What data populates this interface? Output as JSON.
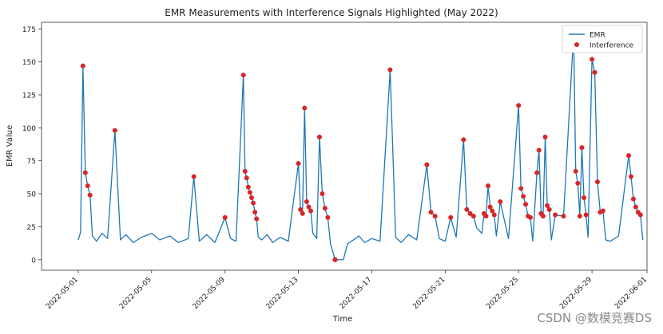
{
  "chart_data": {
    "type": "line",
    "title": "EMR Measurements with Interference Signals Highlighted (May 2022)",
    "xlabel": "Time",
    "ylabel": "EMR Value",
    "xlim": [
      "2022-04-29",
      "2022-06-01"
    ],
    "ylim": [
      -8,
      180
    ],
    "x_ticks": [
      "2022-05-01",
      "2022-05-05",
      "2022-05-09",
      "2022-05-13",
      "2022-05-17",
      "2022-05-21",
      "2022-05-25",
      "2022-05-29",
      "2022-06-01"
    ],
    "y_ticks": [
      0,
      25,
      50,
      75,
      100,
      125,
      150,
      175
    ],
    "grid": false,
    "legend_position": "top-right",
    "series": [
      {
        "name": "EMR",
        "kind": "line",
        "color": "#1f77b4",
        "points": [
          [
            "2022-05-01",
            15
          ],
          [
            "2022-05-01",
            21
          ],
          [
            "2022-05-01",
            147
          ],
          [
            "2022-05-01",
            66
          ],
          [
            "2022-05-01",
            56
          ],
          [
            "2022-05-01",
            49
          ],
          [
            "2022-05-01",
            18
          ],
          [
            "2022-05-02",
            14
          ],
          [
            "2022-05-02",
            20
          ],
          [
            "2022-05-02",
            16
          ],
          [
            "2022-05-03",
            98
          ],
          [
            "2022-05-03",
            15
          ],
          [
            "2022-05-03",
            19
          ],
          [
            "2022-05-04",
            13
          ],
          [
            "2022-05-04",
            17
          ],
          [
            "2022-05-05",
            20
          ],
          [
            "2022-05-05",
            15
          ],
          [
            "2022-05-06",
            18
          ],
          [
            "2022-05-06",
            13
          ],
          [
            "2022-05-07",
            16
          ],
          [
            "2022-05-07",
            63
          ],
          [
            "2022-05-07",
            14
          ],
          [
            "2022-05-08",
            19
          ],
          [
            "2022-05-08",
            13
          ],
          [
            "2022-05-09",
            32
          ],
          [
            "2022-05-09",
            16
          ],
          [
            "2022-05-09",
            14
          ],
          [
            "2022-05-10",
            140
          ],
          [
            "2022-05-10",
            67
          ],
          [
            "2022-05-10",
            62
          ],
          [
            "2022-05-10",
            55
          ],
          [
            "2022-05-10",
            51
          ],
          [
            "2022-05-10",
            47
          ],
          [
            "2022-05-10",
            43
          ],
          [
            "2022-05-10",
            36
          ],
          [
            "2022-05-10",
            31
          ],
          [
            "2022-05-10",
            17
          ],
          [
            "2022-05-11",
            15
          ],
          [
            "2022-05-11",
            19
          ],
          [
            "2022-05-11",
            13
          ],
          [
            "2022-05-12",
            17
          ],
          [
            "2022-05-12",
            14
          ],
          [
            "2022-05-13",
            73
          ],
          [
            "2022-05-13",
            38
          ],
          [
            "2022-05-13",
            35
          ],
          [
            "2022-05-13",
            115
          ],
          [
            "2022-05-13",
            44
          ],
          [
            "2022-05-13",
            40
          ],
          [
            "2022-05-13",
            37
          ],
          [
            "2022-05-13",
            20
          ],
          [
            "2022-05-14",
            16
          ],
          [
            "2022-05-14",
            93
          ],
          [
            "2022-05-14",
            50
          ],
          [
            "2022-05-14",
            39
          ],
          [
            "2022-05-14",
            32
          ],
          [
            "2022-05-14",
            12
          ],
          [
            "2022-05-15",
            0
          ],
          [
            "2022-05-15",
            0
          ],
          [
            "2022-05-15",
            0
          ],
          [
            "2022-05-15",
            12
          ],
          [
            "2022-05-16",
            15
          ],
          [
            "2022-05-16",
            18
          ],
          [
            "2022-05-16",
            13
          ],
          [
            "2022-05-17",
            16
          ],
          [
            "2022-05-17",
            14
          ],
          [
            "2022-05-18",
            144
          ],
          [
            "2022-05-18",
            17
          ],
          [
            "2022-05-18",
            13
          ],
          [
            "2022-05-19",
            19
          ],
          [
            "2022-05-19",
            15
          ],
          [
            "2022-05-20",
            72
          ],
          [
            "2022-05-20",
            36
          ],
          [
            "2022-05-20",
            33
          ],
          [
            "2022-05-20",
            16
          ],
          [
            "2022-05-21",
            14
          ],
          [
            "2022-05-21",
            32
          ],
          [
            "2022-05-21",
            17
          ],
          [
            "2022-05-22",
            91
          ],
          [
            "2022-05-22",
            38
          ],
          [
            "2022-05-22",
            35
          ],
          [
            "2022-05-22",
            33
          ],
          [
            "2022-05-22",
            24
          ],
          [
            "2022-05-23",
            20
          ],
          [
            "2022-05-23",
            35
          ],
          [
            "2022-05-23",
            33
          ],
          [
            "2022-05-23",
            56
          ],
          [
            "2022-05-23",
            40
          ],
          [
            "2022-05-23",
            37
          ],
          [
            "2022-05-23",
            34
          ],
          [
            "2022-05-23",
            18
          ],
          [
            "2022-05-24",
            44
          ],
          [
            "2022-05-24",
            16
          ],
          [
            "2022-05-25",
            117
          ],
          [
            "2022-05-25",
            54
          ],
          [
            "2022-05-25",
            48
          ],
          [
            "2022-05-25",
            42
          ],
          [
            "2022-05-25",
            33
          ],
          [
            "2022-05-25",
            32
          ],
          [
            "2022-05-25",
            14
          ],
          [
            "2022-05-26",
            66
          ],
          [
            "2022-05-26",
            83
          ],
          [
            "2022-05-26",
            35
          ],
          [
            "2022-05-26",
            33
          ],
          [
            "2022-05-26",
            93
          ],
          [
            "2022-05-26",
            41
          ],
          [
            "2022-05-26",
            38
          ],
          [
            "2022-05-26",
            15
          ],
          [
            "2022-05-27",
            34
          ],
          [
            "2022-05-27",
            33
          ],
          [
            "2022-05-28",
            172
          ],
          [
            "2022-05-28",
            67
          ],
          [
            "2022-05-28",
            58
          ],
          [
            "2022-05-28",
            33
          ],
          [
            "2022-05-28",
            85
          ],
          [
            "2022-05-28",
            47
          ],
          [
            "2022-05-28",
            34
          ],
          [
            "2022-05-28",
            17
          ],
          [
            "2022-05-29",
            152
          ],
          [
            "2022-05-29",
            142
          ],
          [
            "2022-05-29",
            59
          ],
          [
            "2022-05-29",
            36
          ],
          [
            "2022-05-29",
            37
          ],
          [
            "2022-05-29",
            15
          ],
          [
            "2022-05-30",
            14
          ],
          [
            "2022-05-30",
            18
          ],
          [
            "2022-05-31",
            79
          ],
          [
            "2022-05-31",
            63
          ],
          [
            "2022-05-31",
            46
          ],
          [
            "2022-05-31",
            40
          ],
          [
            "2022-05-31",
            36
          ],
          [
            "2022-05-31",
            34
          ],
          [
            "2022-05-31",
            15
          ]
        ]
      },
      {
        "name": "Interference",
        "kind": "scatter",
        "color": "#d62728",
        "points": [
          [
            "2022-05-01",
            147
          ],
          [
            "2022-05-01",
            66
          ],
          [
            "2022-05-01",
            56
          ],
          [
            "2022-05-01",
            49
          ],
          [
            "2022-05-03",
            98
          ],
          [
            "2022-05-07",
            63
          ],
          [
            "2022-05-09",
            32
          ],
          [
            "2022-05-10",
            140
          ],
          [
            "2022-05-10",
            67
          ],
          [
            "2022-05-10",
            62
          ],
          [
            "2022-05-10",
            55
          ],
          [
            "2022-05-10",
            51
          ],
          [
            "2022-05-10",
            47
          ],
          [
            "2022-05-10",
            43
          ],
          [
            "2022-05-10",
            36
          ],
          [
            "2022-05-10",
            31
          ],
          [
            "2022-05-13",
            73
          ],
          [
            "2022-05-13",
            38
          ],
          [
            "2022-05-13",
            35
          ],
          [
            "2022-05-13",
            115
          ],
          [
            "2022-05-13",
            44
          ],
          [
            "2022-05-13",
            40
          ],
          [
            "2022-05-13",
            37
          ],
          [
            "2022-05-14",
            93
          ],
          [
            "2022-05-14",
            50
          ],
          [
            "2022-05-14",
            39
          ],
          [
            "2022-05-14",
            32
          ],
          [
            "2022-05-15",
            0
          ],
          [
            "2022-05-15",
            0
          ],
          [
            "2022-05-15",
            0
          ],
          [
            "2022-05-18",
            144
          ],
          [
            "2022-05-20",
            72
          ],
          [
            "2022-05-20",
            36
          ],
          [
            "2022-05-20",
            33
          ],
          [
            "2022-05-21",
            32
          ],
          [
            "2022-05-22",
            91
          ],
          [
            "2022-05-22",
            38
          ],
          [
            "2022-05-22",
            35
          ],
          [
            "2022-05-22",
            33
          ],
          [
            "2022-05-23",
            35
          ],
          [
            "2022-05-23",
            33
          ],
          [
            "2022-05-23",
            56
          ],
          [
            "2022-05-23",
            40
          ],
          [
            "2022-05-23",
            37
          ],
          [
            "2022-05-23",
            34
          ],
          [
            "2022-05-24",
            44
          ],
          [
            "2022-05-25",
            117
          ],
          [
            "2022-05-25",
            54
          ],
          [
            "2022-05-25",
            48
          ],
          [
            "2022-05-25",
            42
          ],
          [
            "2022-05-25",
            33
          ],
          [
            "2022-05-25",
            32
          ],
          [
            "2022-05-26",
            66
          ],
          [
            "2022-05-26",
            83
          ],
          [
            "2022-05-26",
            35
          ],
          [
            "2022-05-26",
            33
          ],
          [
            "2022-05-26",
            93
          ],
          [
            "2022-05-26",
            41
          ],
          [
            "2022-05-26",
            38
          ],
          [
            "2022-05-27",
            34
          ],
          [
            "2022-05-27",
            33
          ],
          [
            "2022-05-28",
            172
          ],
          [
            "2022-05-28",
            67
          ],
          [
            "2022-05-28",
            58
          ],
          [
            "2022-05-28",
            33
          ],
          [
            "2022-05-28",
            85
          ],
          [
            "2022-05-28",
            47
          ],
          [
            "2022-05-28",
            34
          ],
          [
            "2022-05-29",
            152
          ],
          [
            "2022-05-29",
            142
          ],
          [
            "2022-05-29",
            59
          ],
          [
            "2022-05-29",
            36
          ],
          [
            "2022-05-29",
            37
          ],
          [
            "2022-05-31",
            79
          ],
          [
            "2022-05-31",
            63
          ],
          [
            "2022-05-31",
            46
          ],
          [
            "2022-05-31",
            40
          ],
          [
            "2022-05-31",
            36
          ],
          [
            "2022-05-31",
            34
          ]
        ]
      }
    ]
  },
  "watermark": "CSDN @数模竞赛DS"
}
